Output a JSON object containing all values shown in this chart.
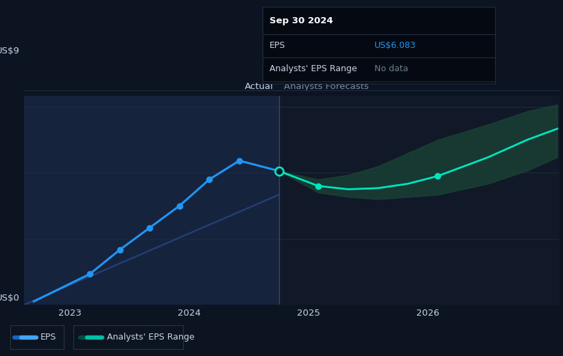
{
  "bg_color": "#0d1421",
  "plot_bg": "#111827",
  "actual_shade_color": "#1a2d50",
  "eps_line_color": "#2196f3",
  "forecast_line_color": "#00e5c0",
  "forecast_band_upper_color": "#1a4040",
  "forecast_band_lower_color": "#0d1a2a",
  "trend_line_color": "#2a4a8a",
  "grid_color": "#1e2d45",
  "text_color": "#c8d6e8",
  "label_color": "#7a8ba0",
  "tooltip_bg": "#050a12",
  "tooltip_border": "#2a3a55",
  "tooltip_header_color": "#ffffff",
  "tooltip_eps_color": "#2196f3",
  "tooltip_nodata_color": "#6a7d90",
  "divider_color": "#3a4a65",
  "ylim": [
    0,
    9.5
  ],
  "xlim": [
    2022.62,
    2027.1
  ],
  "xticks": [
    2023,
    2024,
    2025,
    2026
  ],
  "actual_x_start": 2022.62,
  "actual_x_end": 2024.75,
  "divider_x": 2024.75,
  "actual_label": "Actual",
  "forecast_label": "Analysts Forecasts",
  "eps_x": [
    2022.7,
    2023.17,
    2023.42,
    2023.67,
    2023.92,
    2024.17,
    2024.42,
    2024.75
  ],
  "eps_y": [
    0.15,
    1.4,
    2.5,
    3.5,
    4.5,
    5.7,
    6.55,
    6.083
  ],
  "forecast_x": [
    2024.75,
    2025.08,
    2025.33,
    2025.58,
    2025.83,
    2026.08,
    2026.5,
    2026.83,
    2027.08
  ],
  "forecast_y": [
    6.083,
    5.4,
    5.25,
    5.3,
    5.5,
    5.85,
    6.7,
    7.5,
    8.0
  ],
  "forecast_upper": [
    6.083,
    5.7,
    5.9,
    6.3,
    6.9,
    7.5,
    8.2,
    8.8,
    9.1
  ],
  "forecast_lower": [
    6.083,
    5.1,
    4.9,
    4.8,
    4.9,
    5.0,
    5.5,
    6.1,
    6.7
  ],
  "trend_x": [
    2022.62,
    2024.75
  ],
  "trend_y": [
    0.0,
    5.0
  ],
  "tooltip_date": "Sep 30 2024",
  "tooltip_eps_label": "EPS",
  "tooltip_eps_value": "US$6.083",
  "tooltip_range_label": "Analysts' EPS Range",
  "tooltip_range_value": "No data",
  "legend_eps": "EPS",
  "legend_range": "Analysts' EPS Range",
  "highlight_dot_x": 2024.75,
  "highlight_dot_y": 6.083,
  "forecast_dot1_x": 2025.08,
  "forecast_dot1_y": 5.4,
  "forecast_dot2_x": 2026.08,
  "forecast_dot2_y": 5.85
}
